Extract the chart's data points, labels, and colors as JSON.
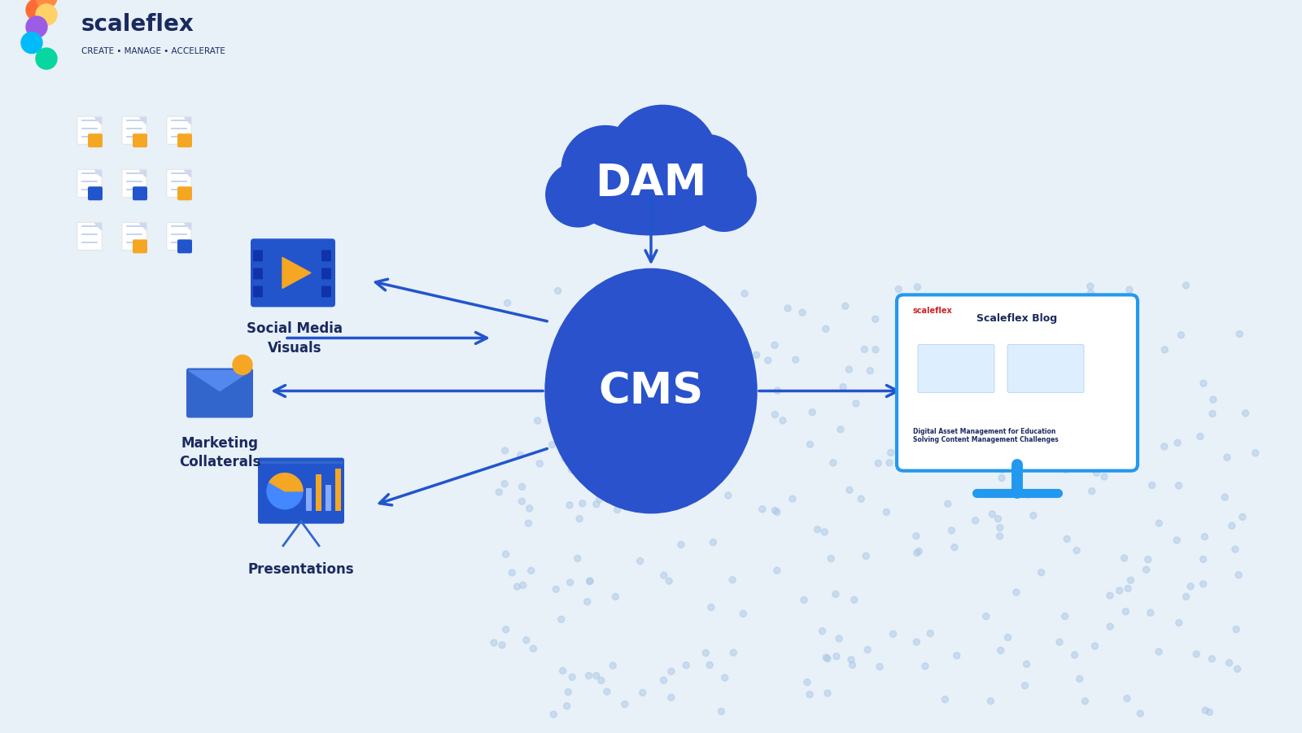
{
  "bg_color": "#e8f0f8",
  "bg_color2": "#d0e4f7",
  "dam_color": "#2952cc",
  "cms_color": "#2952cc",
  "arrow_color": "#2255cc",
  "text_color_white": "#ffffff",
  "text_color_dark": "#1a2a5e",
  "icon_blue": "#2255cc",
  "icon_yellow": "#f5a623",
  "dam_label": "DAM",
  "cms_label": "CMS",
  "social_label": "Social Media\nVisuals",
  "marketing_label": "Marketing\nCollaterals",
  "presentations_label": "Presentations",
  "scaleflex_tagline": "CREATE • MANAGE • ACCELERATE",
  "scaleflex_name": "scaleflex",
  "dot_color": "#aac8e8",
  "monitor_color": "#2299ee",
  "blog_title": "Scaleflex Blog",
  "blog_subtitle": "Digital Asset Management for Education\nSolving Content Management Challenges"
}
